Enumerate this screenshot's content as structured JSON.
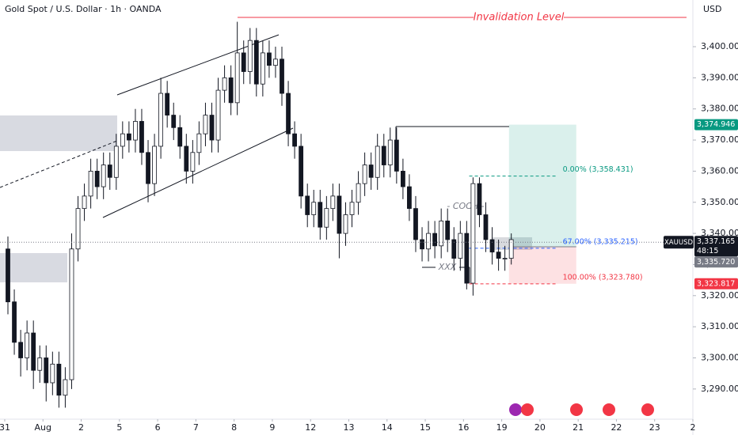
{
  "header": {
    "title": "Gold Spot / U.S. Dollar · 1h · OANDA",
    "currency": "USD"
  },
  "chart_data": {
    "type": "candlestick",
    "x": [
      0.083,
      0.25,
      0.417,
      0.583,
      0.75,
      0.917,
      1.083,
      1.25,
      1.417,
      1.583,
      1.75,
      1.917,
      2.083,
      2.25,
      2.417,
      2.583,
      2.75,
      2.917,
      3.083,
      3.25,
      3.417,
      3.583,
      3.75,
      3.917,
      4.083,
      4.25,
      4.417,
      4.583,
      4.75,
      4.917,
      5.083,
      5.25,
      5.417,
      5.583,
      5.75,
      5.917,
      6.083,
      6.25,
      6.417,
      6.583,
      6.75,
      6.917,
      7.083,
      7.25,
      7.417,
      7.583,
      7.75,
      7.917,
      8.083,
      8.25,
      8.417,
      8.583,
      8.75,
      8.917,
      9.083,
      9.25,
      9.417,
      9.583,
      9.75,
      9.917,
      10.083,
      10.25,
      10.417,
      10.583,
      10.75,
      10.917,
      11.083,
      11.25,
      11.417,
      11.583,
      11.75,
      11.917,
      12.083,
      12.25,
      12.417,
      12.583,
      12.75,
      12.917,
      13.083,
      13.25
    ],
    "open": [
      3335,
      3318,
      3305,
      3300,
      3308,
      3296,
      3300,
      3292,
      3298,
      3288,
      3293,
      3335,
      3348,
      3352,
      3360,
      3355,
      3362,
      3358,
      3368,
      3372,
      3370,
      3376,
      3366,
      3356,
      3368,
      3385,
      3378,
      3374,
      3368,
      3360,
      3366,
      3372,
      3378,
      3370,
      3386,
      3390,
      3382,
      3398,
      3392,
      3402,
      3388,
      3398,
      3394,
      3396,
      3385,
      3372,
      3368,
      3352,
      3346,
      3350,
      3342,
      3348,
      3352,
      3340,
      3346,
      3350,
      3356,
      3362,
      3358,
      3368,
      3362,
      3370,
      3360,
      3355,
      3348,
      3338,
      3335,
      3340,
      3336,
      3344,
      3338,
      3332,
      3340,
      3324,
      3356,
      3346,
      3338,
      3334,
      3332,
      3332
    ],
    "high": [
      3339,
      3322,
      3309,
      3312,
      3312,
      3304,
      3304,
      3302,
      3302,
      3297,
      3340,
      3352,
      3356,
      3364,
      3364,
      3366,
      3366,
      3372,
      3376,
      3376,
      3380,
      3380,
      3370,
      3372,
      3390,
      3389,
      3382,
      3378,
      3372,
      3370,
      3376,
      3382,
      3382,
      3390,
      3394,
      3394,
      3408,
      3402,
      3406,
      3406,
      3402,
      3402,
      3400,
      3400,
      3389,
      3376,
      3372,
      3356,
      3354,
      3354,
      3352,
      3356,
      3356,
      3350,
      3354,
      3360,
      3366,
      3366,
      3372,
      3372,
      3374,
      3374,
      3364,
      3359,
      3352,
      3342,
      3344,
      3344,
      3348,
      3348,
      3342,
      3344,
      3344,
      3358,
      3358,
      3350,
      3342,
      3338,
      3336,
      3340
    ],
    "low": [
      3314,
      3301,
      3294,
      3296,
      3290,
      3292,
      3286,
      3288,
      3284,
      3284,
      3290,
      3331,
      3344,
      3348,
      3351,
      3351,
      3354,
      3354,
      3364,
      3366,
      3366,
      3362,
      3350,
      3352,
      3364,
      3374,
      3370,
      3364,
      3356,
      3356,
      3362,
      3368,
      3366,
      3366,
      3382,
      3378,
      3378,
      3388,
      3388,
      3384,
      3384,
      3390,
      3390,
      3381,
      3368,
      3364,
      3348,
      3342,
      3342,
      3338,
      3338,
      3344,
      3332,
      3336,
      3342,
      3346,
      3352,
      3354,
      3354,
      3358,
      3358,
      3356,
      3351,
      3344,
      3334,
      3331,
      3331,
      3332,
      3332,
      3334,
      3328,
      3328,
      3322,
      3320,
      3342,
      3334,
      3330,
      3328,
      3328,
      3330
    ],
    "close": [
      3318,
      3305,
      3300,
      3308,
      3296,
      3300,
      3292,
      3298,
      3288,
      3293,
      3335,
      3348,
      3352,
      3360,
      3355,
      3362,
      3358,
      3368,
      3372,
      3370,
      3376,
      3366,
      3356,
      3368,
      3385,
      3378,
      3374,
      3368,
      3360,
      3366,
      3372,
      3378,
      3370,
      3386,
      3390,
      3382,
      3398,
      3392,
      3402,
      3388,
      3398,
      3394,
      3396,
      3385,
      3372,
      3368,
      3352,
      3346,
      3350,
      3342,
      3348,
      3352,
      3340,
      3346,
      3350,
      3356,
      3362,
      3358,
      3368,
      3362,
      3370,
      3360,
      3355,
      3348,
      3338,
      3335,
      3340,
      3336,
      3344,
      3338,
      3332,
      3340,
      3324,
      3356,
      3346,
      3338,
      3334,
      3332,
      3332,
      3338
    ],
    "up_color": "#ffffff",
    "down_color": "#131722",
    "xlim": [
      -0.124,
      18.0
    ],
    "ylim": [
      3280.3,
      3415.0
    ],
    "xticks": [
      {
        "value": 0,
        "label": "31"
      },
      {
        "value": 1,
        "label": "Aug"
      },
      {
        "value": 2,
        "label": "2"
      },
      {
        "value": 3,
        "label": "5"
      },
      {
        "value": 4,
        "label": "6"
      },
      {
        "value": 5,
        "label": "7"
      },
      {
        "value": 6,
        "label": "8"
      },
      {
        "value": 7,
        "label": "9"
      },
      {
        "value": 8,
        "label": "12"
      },
      {
        "value": 9,
        "label": "13"
      },
      {
        "value": 10,
        "label": "14"
      },
      {
        "value": 11,
        "label": "15"
      },
      {
        "value": 12,
        "label": "16"
      },
      {
        "value": 13,
        "label": "19"
      },
      {
        "value": 14,
        "label": "20"
      },
      {
        "value": 15,
        "label": "21"
      },
      {
        "value": 16,
        "label": "22"
      },
      {
        "value": 17,
        "label": "23"
      },
      {
        "value": 18,
        "label": "2"
      }
    ],
    "yticks": [
      {
        "value": 3290,
        "label": "3,290.000"
      },
      {
        "value": 3300,
        "label": "3,300.000"
      },
      {
        "value": 3310,
        "label": "3,310.000"
      },
      {
        "value": 3320,
        "label": "3,320.000"
      },
      {
        "value": 3330,
        "label": "3,330.000"
      },
      {
        "value": 3340,
        "label": "3,340.000"
      },
      {
        "value": 3350,
        "label": "3,350.000"
      },
      {
        "value": 3360,
        "label": "3,360.000"
      },
      {
        "value": 3370,
        "label": "3,370.000"
      },
      {
        "value": 3380,
        "label": "3,380.000"
      },
      {
        "value": 3390,
        "label": "3,390.000"
      },
      {
        "value": 3400,
        "label": "3,400.000"
      }
    ],
    "invalidation": {
      "label": "Invalidation Level",
      "value": 3409.4,
      "color": "#f23645"
    },
    "fib_levels": [
      {
        "label": "0.00% (3,358.431)",
        "value": 3358.431,
        "color": "#089981"
      },
      {
        "label": "67.00% (3,335.215)",
        "value": 3335.215,
        "color": "#2962ff"
      },
      {
        "label": "100.00% (3,323.780)",
        "value": 3323.78,
        "color": "#f23645"
      }
    ],
    "fib_x": [
      12.15,
      14.47
    ],
    "position": {
      "x": [
        13.19,
        14.95
      ],
      "target": {
        "value": 3374.946,
        "label": "3,374.946"
      },
      "entry": {
        "value": 3335.72,
        "label": "3,335.720"
      },
      "stop": {
        "value": 3323.817,
        "label": "3,323.817"
      }
    },
    "last_price": {
      "symbol": "XAUUSD",
      "value": 3337.165,
      "label": "3,337.165",
      "countdown": "48:15"
    },
    "annotations": [
      "- COCH -",
      "XXX"
    ]
  }
}
